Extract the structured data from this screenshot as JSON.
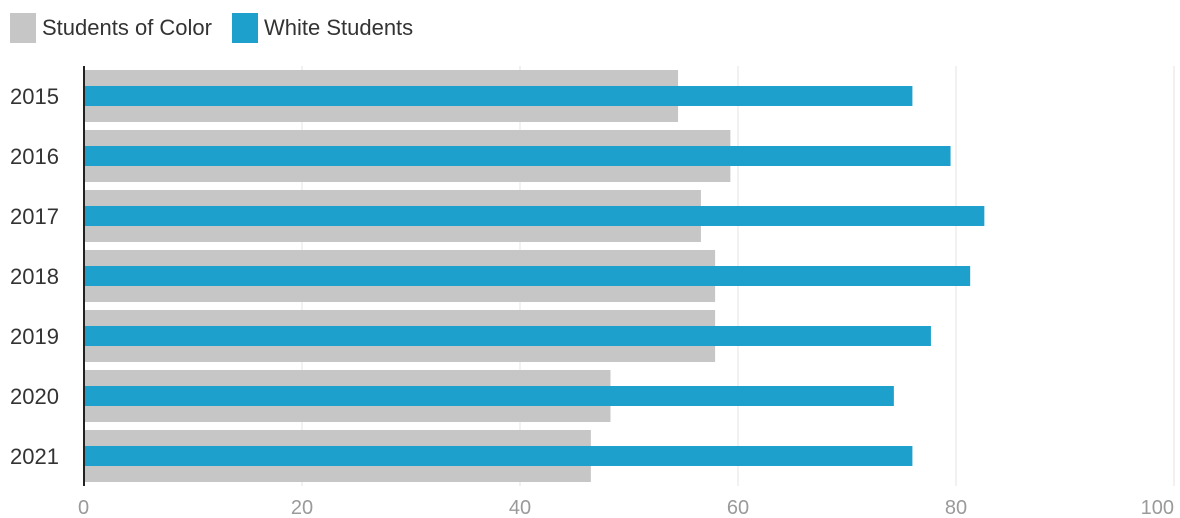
{
  "chart_data": {
    "type": "bar",
    "orientation": "horizontal",
    "categories": [
      "2015",
      "2016",
      "2017",
      "2018",
      "2019",
      "2020",
      "2021"
    ],
    "series": [
      {
        "name": "Students of Color",
        "color": "#c6c6c6",
        "values": [
          54.5,
          59.3,
          56.6,
          57.9,
          57.9,
          48.3,
          46.5
        ]
      },
      {
        "name": "White Students",
        "color": "#1ea0cc",
        "values": [
          76.0,
          79.5,
          82.6,
          81.3,
          77.7,
          74.3,
          76.0
        ]
      }
    ],
    "xlim": [
      0,
      100
    ],
    "xticks": [
      "0",
      "20",
      "40",
      "60",
      "80",
      "100"
    ],
    "grid": true,
    "legend_position": "top-left"
  }
}
